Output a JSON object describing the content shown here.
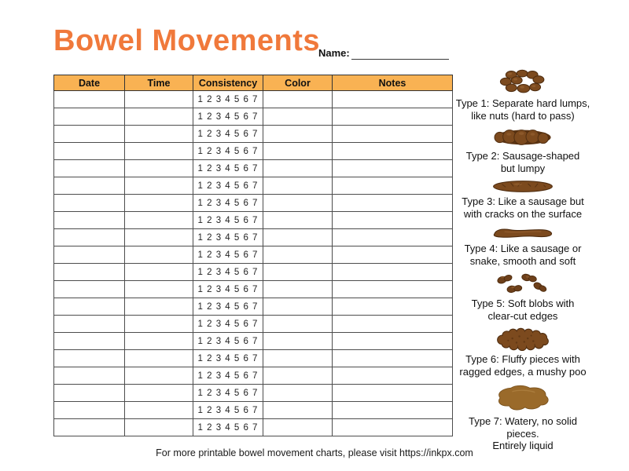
{
  "page": {
    "title": "Bowel Movements",
    "name_label": "Name:",
    "footer": "For more printable bowel movement charts, please visit https://inkpx.com"
  },
  "colors": {
    "title_orange": "#F0793B",
    "table_header_orange": "#F9B253",
    "stool_brown": "#7C4A1E",
    "stool_brown_dark": "#4F2D10",
    "stool_brown_deep": "#5E3513",
    "watery_brown_light": "#9A6A2A"
  },
  "table": {
    "headers": [
      "Date",
      "Time",
      "Consistency",
      "Color",
      "Notes"
    ],
    "row_count": 20,
    "consistency_scale": "1 2 3 4 5 6 7"
  },
  "bristol": {
    "types": [
      {
        "icon": "hard-lumps-icon",
        "line1": "Type 1: Separate hard lumps,",
        "line2": "like nuts (hard to pass)"
      },
      {
        "icon": "lumpy-sausage-icon",
        "line1": "Type 2: Sausage-shaped",
        "line2": "but lumpy"
      },
      {
        "icon": "cracked-sausage-icon",
        "line1": "Type 3: Like a sausage but",
        "line2": "with cracks on the surface"
      },
      {
        "icon": "smooth-sausage-icon",
        "line1": "Type 4: Like a sausage or",
        "line2": "snake, smooth and soft"
      },
      {
        "icon": "soft-blobs-icon",
        "line1": "Type 5: Soft blobs with",
        "line2": "clear-cut edges"
      },
      {
        "icon": "fluffy-pieces-icon",
        "line1": "Type 6: Fluffy pieces with",
        "line2": "ragged edges, a mushy poo"
      },
      {
        "icon": "watery-liquid-icon",
        "line1": "Type 7: Watery, no solid pieces.",
        "line2": "Entirely liquid"
      }
    ]
  }
}
